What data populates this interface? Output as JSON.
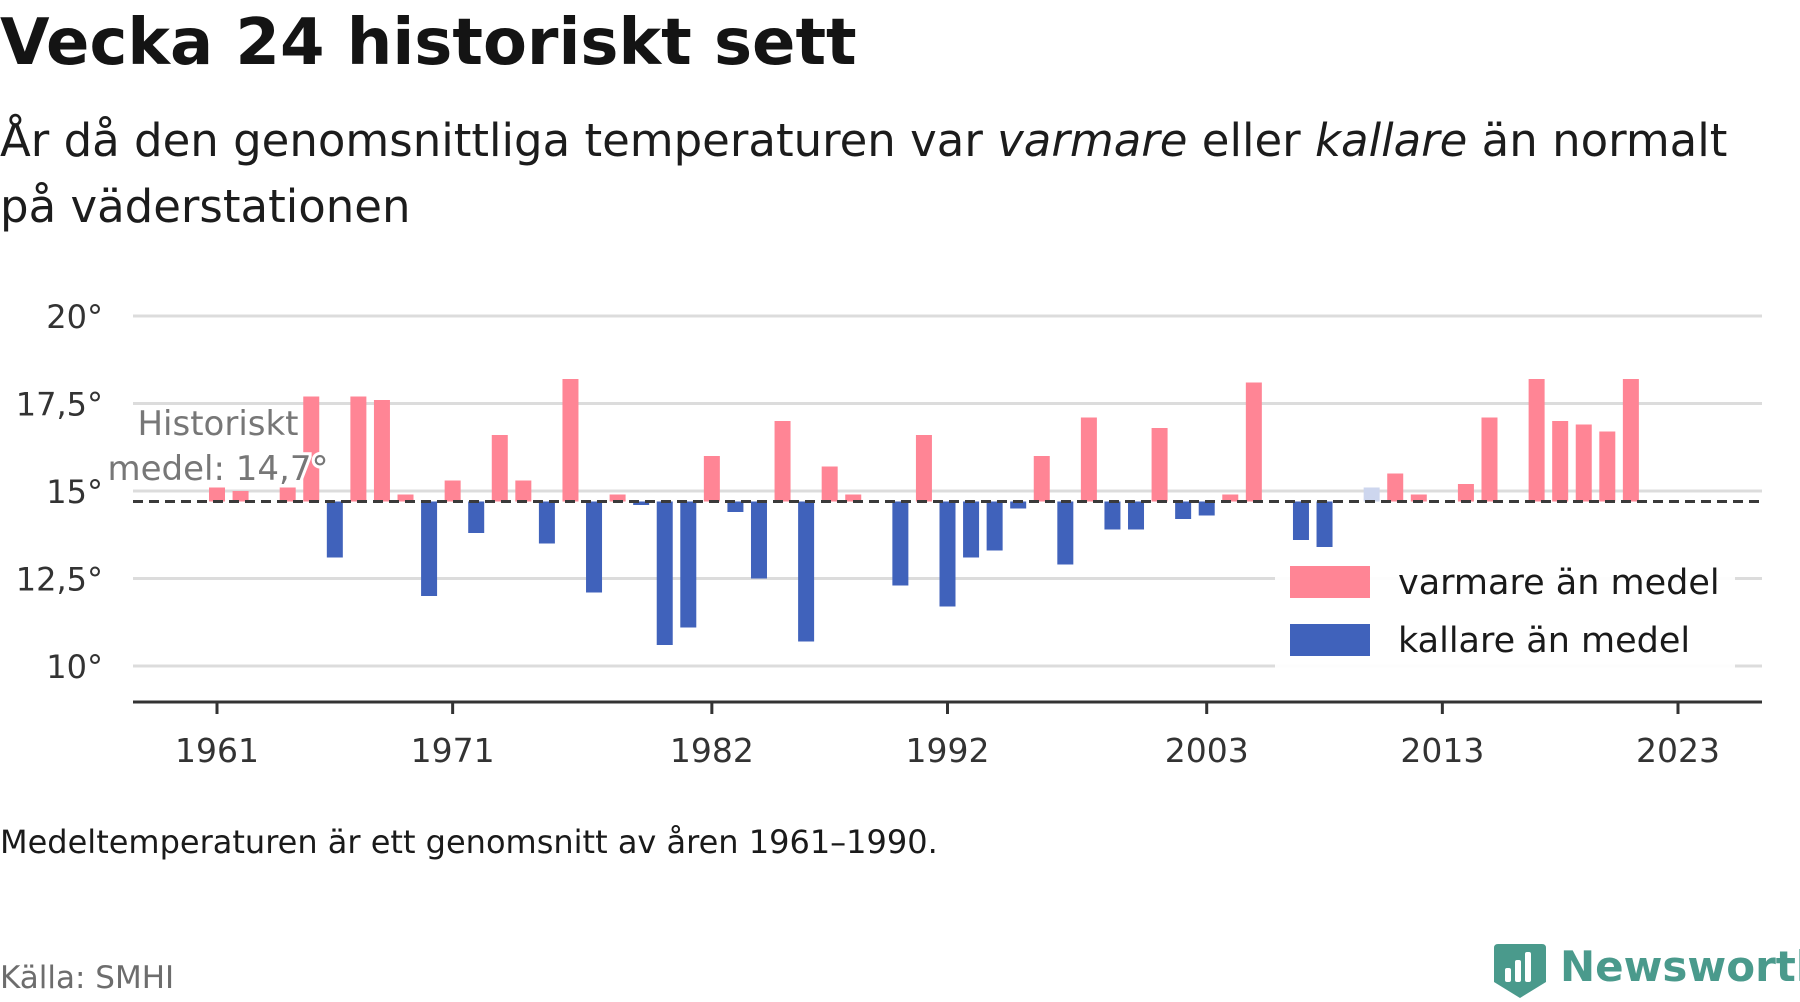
{
  "title": "Vecka 24 historiskt sett",
  "subtitle": {
    "before": "År då den genomsnittliga temperaturen var ",
    "warm_word": "varmare",
    "middle": " eller ",
    "cold_word": "kallare",
    "after": " än normalt på väderstationen"
  },
  "note": "Medeltemperaturen är ett genomsnitt av åren 1961–1990.",
  "source": "Källa: SMHI",
  "brand": {
    "name": "Newsworthy",
    "icon": "newsworthy-logo-icon",
    "color": "#4a9a8c"
  },
  "chart_data": {
    "type": "bar",
    "baseline": 14.7,
    "baseline_label": [
      "Historiskt",
      "medel: 14,7°"
    ],
    "ylim": [
      9,
      20.5
    ],
    "y_ticks": [
      {
        "value": 10,
        "label": "10°"
      },
      {
        "value": 12.5,
        "label": "12,5°"
      },
      {
        "value": 15,
        "label": "15°"
      },
      {
        "value": 17.5,
        "label": "17,5°"
      },
      {
        "value": 20,
        "label": "20°"
      }
    ],
    "x_ticks": [
      1961,
      1971,
      1982,
      1992,
      2003,
      2013,
      2023
    ],
    "grid": true,
    "legend": {
      "position": "bottom-right",
      "items": [
        {
          "label": "varmare än medel",
          "color": "#ff8595"
        },
        {
          "label": "kallare än medel",
          "color": "#4062bb"
        }
      ]
    },
    "colors": {
      "warm": "#ff8595",
      "cold": "#4062bb",
      "partial": "#cdd6ee"
    },
    "highlight_year": 2010,
    "years": [
      1961,
      1962,
      1963,
      1964,
      1965,
      1966,
      1967,
      1968,
      1969,
      1970,
      1971,
      1972,
      1973,
      1974,
      1975,
      1976,
      1977,
      1978,
      1979,
      1980,
      1981,
      1982,
      1983,
      1984,
      1985,
      1986,
      1987,
      1988,
      1989,
      1990,
      1991,
      1992,
      1993,
      1994,
      1995,
      1996,
      1997,
      1998,
      1999,
      2000,
      2001,
      2002,
      2003,
      2004,
      2005,
      2006,
      2007,
      2008,
      2009,
      2010,
      2011,
      2012,
      2013,
      2014,
      2015,
      2016,
      2017,
      2018,
      2019,
      2020,
      2021,
      2022,
      2023
    ],
    "values": [
      15.1,
      15.0,
      14.7,
      15.1,
      17.7,
      13.1,
      17.7,
      17.6,
      14.9,
      12.0,
      15.3,
      13.8,
      16.6,
      15.3,
      13.5,
      18.2,
      12.1,
      14.9,
      14.6,
      10.6,
      11.1,
      16.0,
      14.4,
      12.5,
      17.0,
      10.7,
      15.7,
      14.9,
      14.7,
      12.3,
      16.6,
      11.7,
      13.1,
      13.3,
      14.5,
      16.0,
      12.9,
      17.1,
      13.9,
      13.9,
      16.8,
      14.2,
      14.3,
      14.9,
      18.1,
      14.7,
      13.6,
      13.4,
      14.7,
      15.1,
      15.5,
      14.9,
      14.7,
      15.2,
      17.1,
      14.7,
      18.2,
      17.0,
      16.9,
      16.7,
      18.2,
      14.7,
      14.7
    ]
  }
}
